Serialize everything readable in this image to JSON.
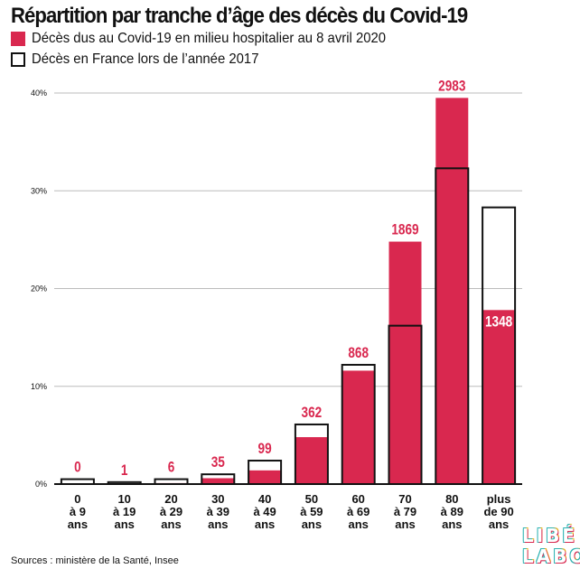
{
  "title": "Répartition par tranche d’âge des décès du Covid-19",
  "legend": {
    "covid": "Décès dus au Covid-19 en milieu hospitalier au 8 avril 2020",
    "france2017": "Décès en France lors de l’année 2017"
  },
  "source": "Sources : ministère de la Santé, Insee",
  "logo": {
    "line1": "LIBÉ",
    "line2": "LABO"
  },
  "colors": {
    "covid": "#d9284f",
    "outline": "#111111",
    "grid": "#bbbbbb"
  },
  "chart_data": {
    "type": "bar",
    "title": "Répartition par tranche d’âge des décès du Covid-19",
    "xlabel": "",
    "ylabel": "",
    "ylim": [
      0,
      40
    ],
    "yticks": [
      0,
      10,
      20,
      30,
      40
    ],
    "ytick_labels": [
      "0%",
      "10%",
      "20%",
      "30%",
      "40%"
    ],
    "grid": true,
    "categories": [
      [
        "0",
        "à 9",
        "ans"
      ],
      [
        "10",
        "à 19",
        "ans"
      ],
      [
        "20",
        "à 29",
        "ans"
      ],
      [
        "30",
        "à 39",
        "ans"
      ],
      [
        "40",
        "à 49",
        "ans"
      ],
      [
        "50",
        "à 59",
        "ans"
      ],
      [
        "60",
        "à 69",
        "ans"
      ],
      [
        "70",
        "à 79",
        "ans"
      ],
      [
        "80",
        "à 89",
        "ans"
      ],
      [
        "plus",
        "de 90",
        "ans"
      ]
    ],
    "series": [
      {
        "name": "Décès dus au Covid-19 en milieu hospitalier au 8 avril 2020",
        "values": [
          0,
          0.01,
          0.1,
          0.6,
          1.4,
          4.8,
          11.6,
          24.8,
          39.5,
          17.8
        ],
        "labels": [
          "0",
          "1",
          "6",
          "35",
          "99",
          "362",
          "868",
          "1869",
          "2983",
          "1348"
        ]
      },
      {
        "name": "Décès en France lors de l’année 2017",
        "values": [
          0.5,
          0.2,
          0.5,
          1.0,
          2.4,
          6.1,
          12.2,
          16.2,
          32.3,
          28.3
        ]
      }
    ]
  }
}
